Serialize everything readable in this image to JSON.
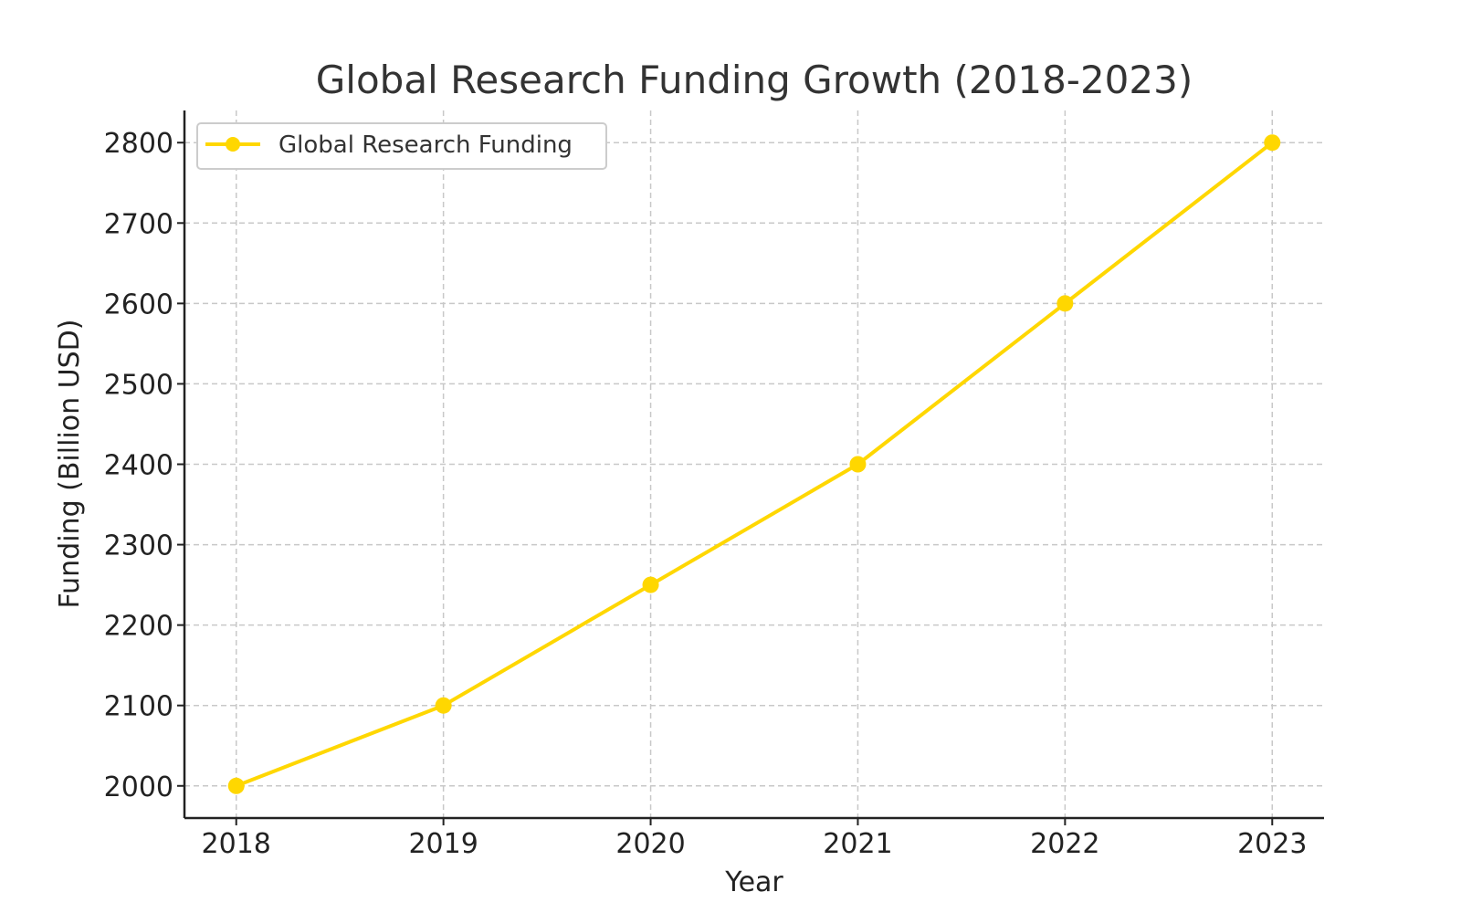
{
  "chart_data": {
    "type": "line",
    "title": "Global Research Funding Growth (2018-2023)",
    "xlabel": "Year",
    "ylabel": "Funding (Billion USD)",
    "x": [
      2018,
      2019,
      2020,
      2021,
      2022,
      2023
    ],
    "series": [
      {
        "name": "Global Research Funding",
        "values": [
          2000,
          2100,
          2250,
          2400,
          2600,
          2800
        ],
        "color": "#FFD700",
        "marker": "circle"
      }
    ],
    "ylim": [
      1960,
      2840
    ],
    "xlim": [
      2017.75,
      2023.25
    ],
    "yticks": [
      2000,
      2100,
      2200,
      2300,
      2400,
      2500,
      2600,
      2700,
      2800
    ],
    "xticks": [
      2018,
      2019,
      2020,
      2021,
      2022,
      2023
    ],
    "grid": true,
    "legend_position": "top-left"
  }
}
